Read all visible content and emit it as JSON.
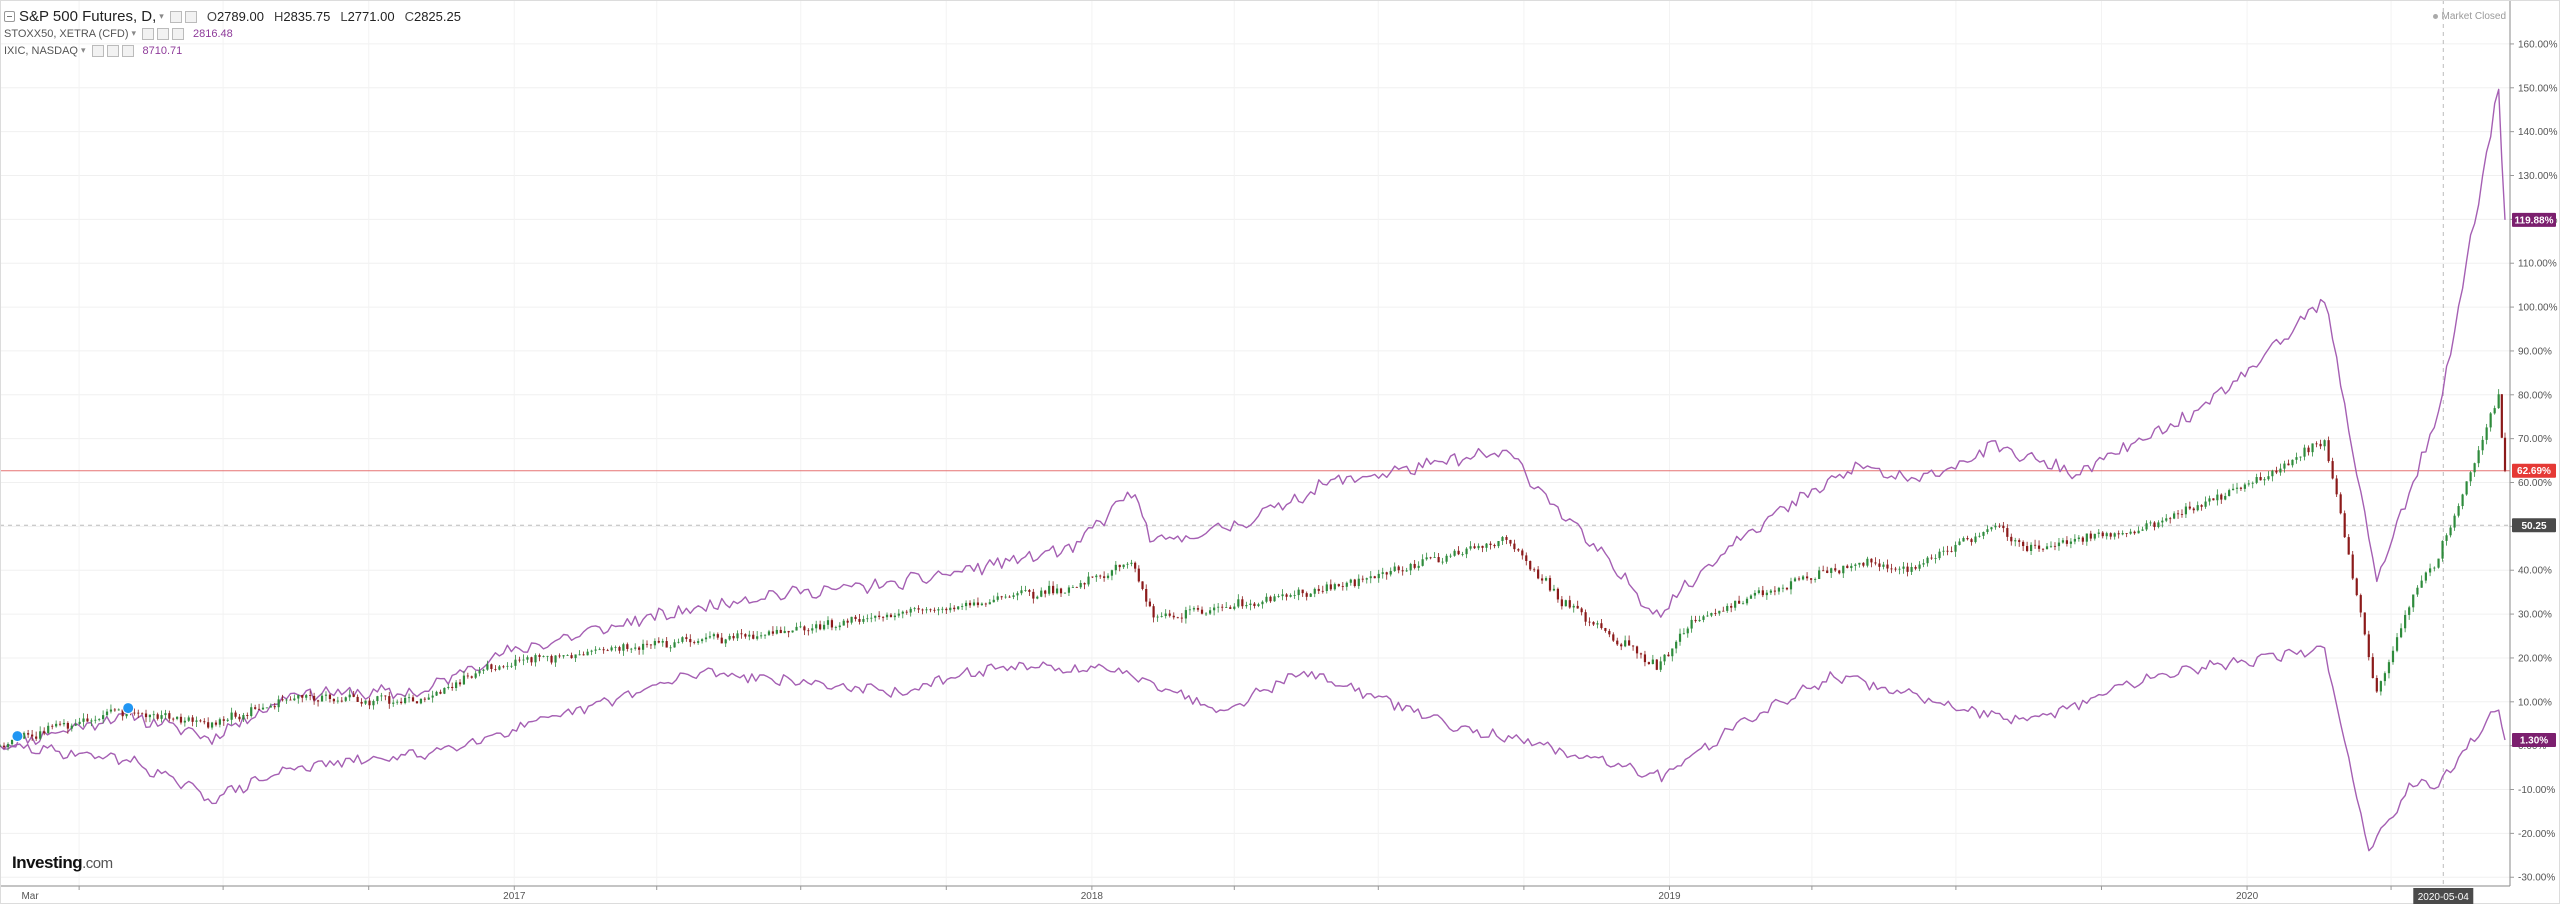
{
  "legend": {
    "main_title": "S&P 500 Futures, D,",
    "open_label": "O",
    "open_value": "2789.00",
    "high_label": "H",
    "high_value": "2835.75",
    "low_label": "L",
    "low_value": "2771.00",
    "close_label": "C",
    "close_value": "2825.25",
    "compare": [
      {
        "symbol": "STOXX50, XETRA (CFD)",
        "value": "2816.48"
      },
      {
        "symbol": "IXIC, NASDAQ",
        "value": "8710.71"
      }
    ]
  },
  "status_text": "Market Closed",
  "brand": {
    "name": "Investing",
    "suffix": ".com"
  },
  "colors": {
    "compare_line": "#a55fb3",
    "candle_up": "#2e8b3c",
    "candle_down": "#8b1a1a",
    "current_line": "#e57373",
    "badge_sp500": "#e53935",
    "badge_compare": "#7b1f6e",
    "badge_crosshair": "#4a4a4a"
  },
  "chart_data": {
    "type": "line",
    "y_unit": "%",
    "ylim": [
      -32,
      165
    ],
    "yticks": [
      -30,
      -20,
      -10,
      0,
      10,
      20,
      30,
      40,
      50,
      60,
      70,
      80,
      90,
      100,
      110,
      120,
      130,
      140,
      150,
      160
    ],
    "ytick_labels": [
      "-30.00%",
      "-20.00%",
      "-10.00%",
      "0.00%",
      "10.00%",
      "20.00%",
      "30.00%",
      "40.00%",
      "50.00%",
      "60.00%",
      "70.00%",
      "80.00%",
      "90.00%",
      "100.00%",
      "110.00%",
      "120.00%",
      "130.00%",
      "140.00%",
      "150.00%",
      "160.00%"
    ],
    "xlim": [
      "2016-02-11",
      "2020-06-12"
    ],
    "xtick_labels": [
      {
        "date": "2016-03-01",
        "label": "Mar"
      },
      {
        "date": "2017-01-01",
        "label": "2017"
      },
      {
        "date": "2018-01-01",
        "label": "2018"
      },
      {
        "date": "2019-01-01",
        "label": "2019"
      },
      {
        "date": "2020-01-01",
        "label": "2020"
      }
    ],
    "crosshair": {
      "date": "2020-05-04",
      "label": "2020-05-04",
      "value": 50.25,
      "value_label": "50.25"
    },
    "series": [
      {
        "name": "S&P 500 Futures",
        "style": "candlestick",
        "last_value": 62.69,
        "last_label": "62.69%",
        "x": [
          "2016-02-11",
          "2016-03-15",
          "2016-05-01",
          "2016-06-24",
          "2016-08-15",
          "2016-11-03",
          "2016-12-15",
          "2017-03-01",
          "2017-06-01",
          "2017-09-01",
          "2017-12-20",
          "2018-01-26",
          "2018-02-09",
          "2018-04-01",
          "2018-06-01",
          "2018-09-20",
          "2018-10-25",
          "2018-12-24",
          "2019-01-15",
          "2019-03-01",
          "2019-05-01",
          "2019-06-03",
          "2019-07-26",
          "2019-08-15",
          "2019-11-01",
          "2020-01-17",
          "2020-02-19",
          "2020-03-23",
          "2020-04-15",
          "2020-05-01",
          "2020-06-08",
          "2020-06-12"
        ],
        "y": [
          0,
          4,
          8,
          5,
          11,
          10,
          18,
          22,
          25,
          30,
          36,
          42,
          29,
          32,
          36,
          47,
          33,
          18,
          28,
          35,
          42,
          40,
          50,
          45,
          50,
          62,
          70,
          12,
          35,
          43,
          80,
          62.69
        ]
      },
      {
        "name": "IXIC, NASDAQ",
        "style": "line",
        "last_value": 119.88,
        "last_label": "119.88%",
        "x": [
          "2016-02-11",
          "2016-05-01",
          "2016-06-24",
          "2016-08-15",
          "2016-11-03",
          "2016-12-15",
          "2017-03-01",
          "2017-06-01",
          "2017-09-01",
          "2017-12-20",
          "2018-01-26",
          "2018-02-09",
          "2018-04-01",
          "2018-06-01",
          "2018-09-20",
          "2018-10-25",
          "2018-12-24",
          "2019-02-15",
          "2019-05-01",
          "2019-06-03",
          "2019-07-26",
          "2019-09-15",
          "2019-12-01",
          "2020-01-17",
          "2020-02-19",
          "2020-03-23",
          "2020-04-15",
          "2020-05-01",
          "2020-06-08",
          "2020-06-12"
        ],
        "y": [
          0,
          7,
          2,
          12,
          12,
          20,
          27,
          34,
          37,
          45,
          58,
          46,
          50,
          60,
          67,
          53,
          30,
          48,
          64,
          60,
          68,
          62,
          76,
          90,
          102,
          38,
          60,
          75,
          150,
          119.88
        ]
      },
      {
        "name": "STOXX50, XETRA (CFD)",
        "style": "line",
        "last_value": 1.3,
        "last_label": "1.30%",
        "x": [
          "2016-02-11",
          "2016-05-01",
          "2016-06-24",
          "2016-08-15",
          "2016-11-03",
          "2017-01-15",
          "2017-05-01",
          "2017-09-01",
          "2017-11-01",
          "2018-01-23",
          "2018-03-23",
          "2018-05-15",
          "2018-08-15",
          "2018-12-27",
          "2019-02-15",
          "2019-04-15",
          "2019-08-15",
          "2019-11-01",
          "2020-02-19",
          "2020-03-18",
          "2020-04-15",
          "2020-05-01",
          "2020-06-08",
          "2020-06-12"
        ],
        "y": [
          0,
          -3,
          -12,
          -5,
          -2,
          5,
          17,
          12,
          18,
          17,
          8,
          17,
          5,
          -7,
          5,
          16,
          5,
          16,
          22,
          -24,
          -8,
          -9,
          9,
          1.3
        ]
      }
    ]
  }
}
